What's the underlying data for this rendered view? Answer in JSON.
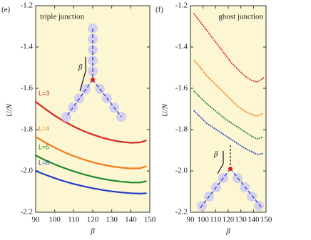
{
  "chart_data": [
    {
      "type": "line",
      "panel_label": "(e)",
      "annotation": "triple junction",
      "diagram_label": "β",
      "x_label": "β",
      "y_label": "U/N",
      "x": [
        90,
        95,
        100,
        105,
        110,
        115,
        120,
        125,
        130,
        135,
        140,
        145,
        148
      ],
      "series": [
        {
          "name": "L=3",
          "color": "#d42a1e",
          "values": [
            -1.665,
            -1.7,
            -1.732,
            -1.76,
            -1.785,
            -1.806,
            -1.824,
            -1.839,
            -1.851,
            -1.859,
            -1.864,
            -1.862,
            -1.853
          ]
        },
        {
          "name": "L=4",
          "color": "#f07d1a",
          "values": [
            -1.835,
            -1.862,
            -1.887,
            -1.909,
            -1.928,
            -1.944,
            -1.958,
            -1.969,
            -1.978,
            -1.984,
            -1.988,
            -1.987,
            -1.978
          ]
        },
        {
          "name": "L=5",
          "color": "#1f8a2a",
          "values": [
            -1.925,
            -1.948,
            -1.968,
            -1.986,
            -2.002,
            -2.016,
            -2.028,
            -2.038,
            -2.046,
            -2.052,
            -2.056,
            -2.056,
            -2.05
          ]
        },
        {
          "name": "L=6",
          "color": "#1f3fc8",
          "values": [
            -2.0,
            -2.018,
            -2.035,
            -2.05,
            -2.063,
            -2.074,
            -2.084,
            -2.092,
            -2.099,
            -2.104,
            -2.108,
            -2.11,
            -2.108
          ]
        }
      ],
      "line_style": "solid",
      "xlim": [
        90,
        150
      ],
      "xticks": [
        90,
        100,
        110,
        120,
        130,
        140,
        150
      ],
      "ylim": [
        -2.2,
        -1.2
      ],
      "yticks": [
        -2.2,
        {
          "value": -2,
          "label": "-2.0"
        },
        -1.8,
        -1.6,
        -1.4,
        -1.2
      ]
    },
    {
      "type": "line",
      "panel_label": "(f)",
      "annotation": "ghost junction",
      "diagram_label": "β",
      "x_label": "β",
      "y_label": "U/N",
      "x": [
        93,
        98,
        103,
        108,
        113,
        118,
        123,
        128,
        133,
        138,
        143,
        148
      ],
      "series": [
        {
          "color": "#d42a1e",
          "values": [
            -1.24,
            -1.28,
            -1.32,
            -1.36,
            -1.4,
            -1.44,
            -1.48,
            -1.51,
            -1.54,
            -1.56,
            -1.57,
            -1.55
          ]
        },
        {
          "color": "#f07d1a",
          "values": [
            -1.465,
            -1.5,
            -1.54,
            -1.57,
            -1.6,
            -1.63,
            -1.66,
            -1.69,
            -1.71,
            -1.725,
            -1.735,
            -1.72
          ]
        },
        {
          "color": "#1f8a2a",
          "values": [
            -1.615,
            -1.645,
            -1.675,
            -1.7,
            -1.725,
            -1.75,
            -1.77,
            -1.79,
            -1.81,
            -1.83,
            -1.845,
            -1.835
          ]
        },
        {
          "color": "#1f3fc8",
          "values": [
            -1.71,
            -1.74,
            -1.77,
            -1.79,
            -1.81,
            -1.83,
            -1.85,
            -1.87,
            -1.89,
            -1.905,
            -1.92,
            -1.915
          ]
        }
      ],
      "line_style": "dotted",
      "xlim": [
        90,
        150
      ],
      "xticks": [
        90,
        100,
        110,
        120,
        130,
        140,
        150
      ],
      "ylim": [
        -2.2,
        -1.2
      ],
      "yticks": [
        -2.2,
        {
          "value": -2,
          "label": "-2.0"
        },
        -1.8,
        -1.6,
        -1.4,
        -1.2
      ]
    }
  ]
}
